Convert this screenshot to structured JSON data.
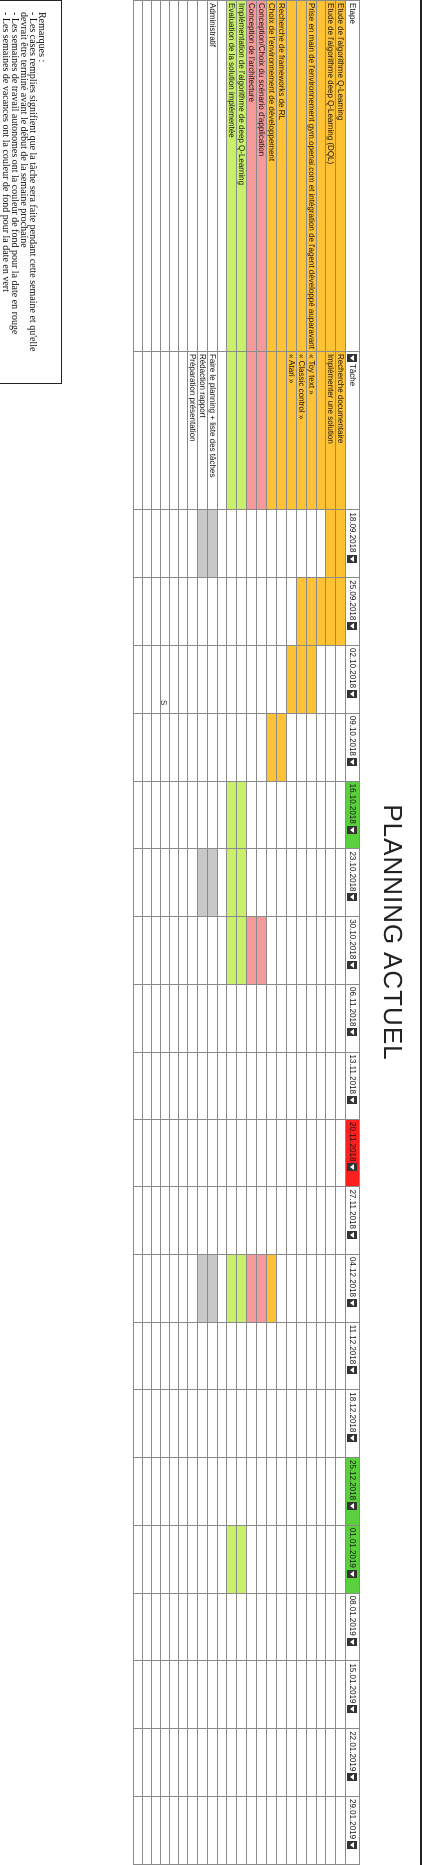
{
  "title": "PLANNING ACTUEL",
  "headers": {
    "etape": "Etape",
    "tache": "Tâche"
  },
  "weeks": [
    {
      "label": "18.09.2018",
      "style": "normal"
    },
    {
      "label": "25.09.2018",
      "style": "normal"
    },
    {
      "label": "02.10.2018",
      "style": "normal"
    },
    {
      "label": "09.10.2018",
      "style": "normal"
    },
    {
      "label": "16.10.2018",
      "style": "green"
    },
    {
      "label": "23.10.2018",
      "style": "normal"
    },
    {
      "label": "30.10.2018",
      "style": "normal"
    },
    {
      "label": "06.11.2018",
      "style": "normal"
    },
    {
      "label": "13.11.2018",
      "style": "normal"
    },
    {
      "label": "20.11.2018",
      "style": "red"
    },
    {
      "label": "27.11.2018",
      "style": "normal"
    },
    {
      "label": "04.12.2018",
      "style": "normal"
    },
    {
      "label": "11.12.2018",
      "style": "normal"
    },
    {
      "label": "18.12.2018",
      "style": "normal"
    },
    {
      "label": "25.12.2018",
      "style": "green"
    },
    {
      "label": "01.01.2019",
      "style": "green"
    },
    {
      "label": "08.01.2019",
      "style": "normal"
    },
    {
      "label": "15.01.2019",
      "style": "normal"
    },
    {
      "label": "22.01.2019",
      "style": "normal"
    },
    {
      "label": "29.01.2019",
      "style": "normal"
    }
  ],
  "rows": [
    {
      "etape": "Etude de l'algorithme Q-Learning",
      "tache": "Recherche documentaire",
      "color": "yellow",
      "filled": [
        0,
        1
      ]
    },
    {
      "etape": "Etude de l'algorithme deep Q-Learning (DQL)",
      "tache": "Implémenter une solution",
      "color": "yellow",
      "filled": [
        0,
        1
      ]
    },
    {
      "etape": "",
      "tache": "",
      "color": "yellow",
      "filled": [
        1
      ]
    },
    {
      "etape": "Prise en main de l'environnement gym.openai.com et intégration de l'agent développé auparavant",
      "tache": "« Toy text »",
      "color": "yellow",
      "filled": [
        1,
        2
      ]
    },
    {
      "etape": "",
      "tache": "« Classic control »",
      "color": "yellow",
      "filled": [
        1,
        2
      ]
    },
    {
      "etape": "",
      "tache": "« Atari »",
      "color": "yellow",
      "filled": [
        2
      ]
    },
    {
      "etape": "Recherche de frameworks de RL",
      "tache": "",
      "color": "yellow",
      "filled": [
        3
      ]
    },
    {
      "etape": "Choix de l'environnement de développement",
      "tache": "",
      "color": "yellow",
      "filled": [
        3,
        11
      ]
    },
    {
      "etape": "Conception/Choix du scénario d'application",
      "tache": "",
      "color": "pink",
      "filled": [
        6,
        11
      ]
    },
    {
      "etape": "Conception de l'architecture",
      "tache": "",
      "color": "pink",
      "filled": [
        6,
        11
      ]
    },
    {
      "etape": "Implémentation de l'algorithme de deep Q-Learning",
      "tache": "",
      "color": "green",
      "filled": [
        4,
        5,
        6,
        11,
        15
      ]
    },
    {
      "etape": "Evaluation de la solution implémentée",
      "tache": "",
      "color": "green",
      "filled": [
        4,
        5,
        6,
        11,
        15
      ]
    },
    {
      "etape": "",
      "tache": "",
      "color": "",
      "filled": []
    },
    {
      "etape": "Administratif",
      "tache": "Faire le planning + liste des tâches",
      "color": "grey",
      "filled": [
        0,
        5,
        11
      ]
    },
    {
      "etape": "",
      "tache": "Rédaction rapport",
      "color": "grey",
      "filled": [
        0,
        5,
        11
      ]
    },
    {
      "etape": "",
      "tache": "Préparation présentation",
      "color": "",
      "filled": []
    }
  ],
  "notes": {
    "heading": "Remarques :",
    "lines": [
      "- Les cases remplies signifient que la tâche sera faite pendant cette semaine et qu'elle",
      "devrait être terminé avant le début de la semaine prochaine",
      "- Les semaines de travail autonomes ont la couleur de fond pour la date en rouge",
      "- Les semaines de vacances ont la couleur de fond pour la date en vert"
    ]
  },
  "stray_mark": "S",
  "colors": {
    "yellow": "#ffc234",
    "pink": "#f59a9a",
    "green": "#c8f06a",
    "grey": "#c8c8c8",
    "red_header": "#ff1f1f",
    "green_header": "#5ad13c"
  }
}
